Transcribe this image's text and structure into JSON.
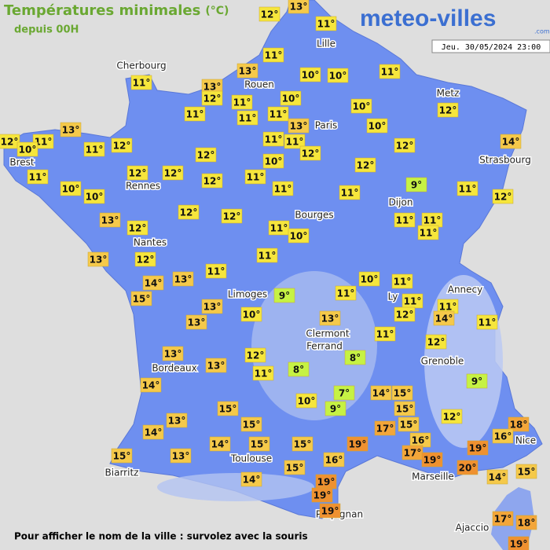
{
  "header": {
    "title": "Températures minimales",
    "unit": "(°C)",
    "subtitle": "depuis 00H",
    "logo": "meteo-villes",
    "logo_suffix": ".com",
    "datetime": "Jeu. 30/05/2024 23:00"
  },
  "cities": [
    "Lille",
    "Cherbourg",
    "Rouen",
    "Paris",
    "Metz",
    "Strasbourg",
    "Brest",
    "Rennes",
    "Dijon",
    "Bourges",
    "Nantes",
    "Annecy",
    "Limoges",
    "Ly",
    "Clermont",
    "Ferrand",
    "Grenoble",
    "Bordeaux",
    "Nice",
    "Toulouse",
    "Biarritz",
    "Marseille",
    "Perpignan",
    "Ajaccio"
  ],
  "temperatures": [
    "13°",
    "12°",
    "11°",
    "11°",
    "13°",
    "10°",
    "10°",
    "11°",
    "11°",
    "13°",
    "12°",
    "11°",
    "10°",
    "11°",
    "11°",
    "11°",
    "13°",
    "10°",
    "12°",
    "10°",
    "13°",
    "12°",
    "11°",
    "10°",
    "11°",
    "12°",
    "11°",
    "11°",
    "12°",
    "12°",
    "14°",
    "12°",
    "10°",
    "12°",
    "11°",
    "12°",
    "12°",
    "12°",
    "11°",
    "10°",
    "10°",
    "11°",
    "11°",
    "9°",
    "11°",
    "12°",
    "12°",
    "12°",
    "13°",
    "12°",
    "11°",
    "10°",
    "11°",
    "11°",
    "11°",
    "13°",
    "12°",
    "11°",
    "13°",
    "11°",
    "14°",
    "15°",
    "10°",
    "11°",
    "9°",
    "11°",
    "13°",
    "11°",
    "11°",
    "12°",
    "14°",
    "11°",
    "13°",
    "10°",
    "13°",
    "11°",
    "12°",
    "13°",
    "12°",
    "8°",
    "13°",
    "11°",
    "8°",
    "14°",
    "9°",
    "7°",
    "14°",
    "15°",
    "10°",
    "9°",
    "15°",
    "15°",
    "13°",
    "15°",
    "17°",
    "15°",
    "12°",
    "18°",
    "16°",
    "14°",
    "14°",
    "15°",
    "15°",
    "19°",
    "16°",
    "17°",
    "19°",
    "15°",
    "13°",
    "16°",
    "19°",
    "20°",
    "15°",
    "15°",
    "14°",
    "14°",
    "19°",
    "19°",
    "19°",
    "17°",
    "18°",
    "19°"
  ],
  "footer": "Pour afficher le nom de la ville : survolez avec la souris"
}
